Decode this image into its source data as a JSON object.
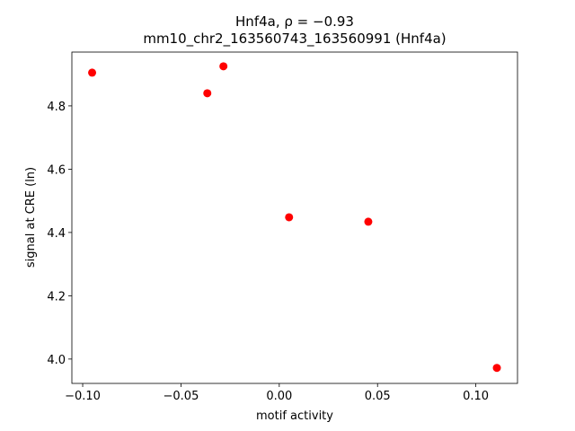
{
  "chart_data": {
    "type": "scatter",
    "title": "Hnf4a, ρ = −0.93",
    "subtitle": "mm10_chr2_163560743_163560991 (Hnf4a)",
    "x_label": "motif activity",
    "y_label": "signal at CRE (ln)",
    "color": "#ff0000",
    "x": [
      -0.0952,
      -0.0366,
      -0.0284,
      0.005,
      0.0453,
      0.1107
    ],
    "values": [
      4.905,
      4.84,
      4.925,
      4.448,
      4.434,
      3.972
    ],
    "xlim": [
      -0.1055,
      0.1212
    ],
    "ylim": [
      3.923,
      4.97
    ],
    "xticks": [
      {
        "value": -0.1,
        "label": "−0.10"
      },
      {
        "value": -0.05,
        "label": "−0.05"
      },
      {
        "value": 0,
        "label": "0.00"
      },
      0.05,
      {
        "value": 0.1,
        "label": "0.10"
      }
    ],
    "yticks": [
      {
        "value": 4.0,
        "label": "4.0"
      },
      4.2,
      4.4,
      4.6,
      4.8
    ]
  }
}
